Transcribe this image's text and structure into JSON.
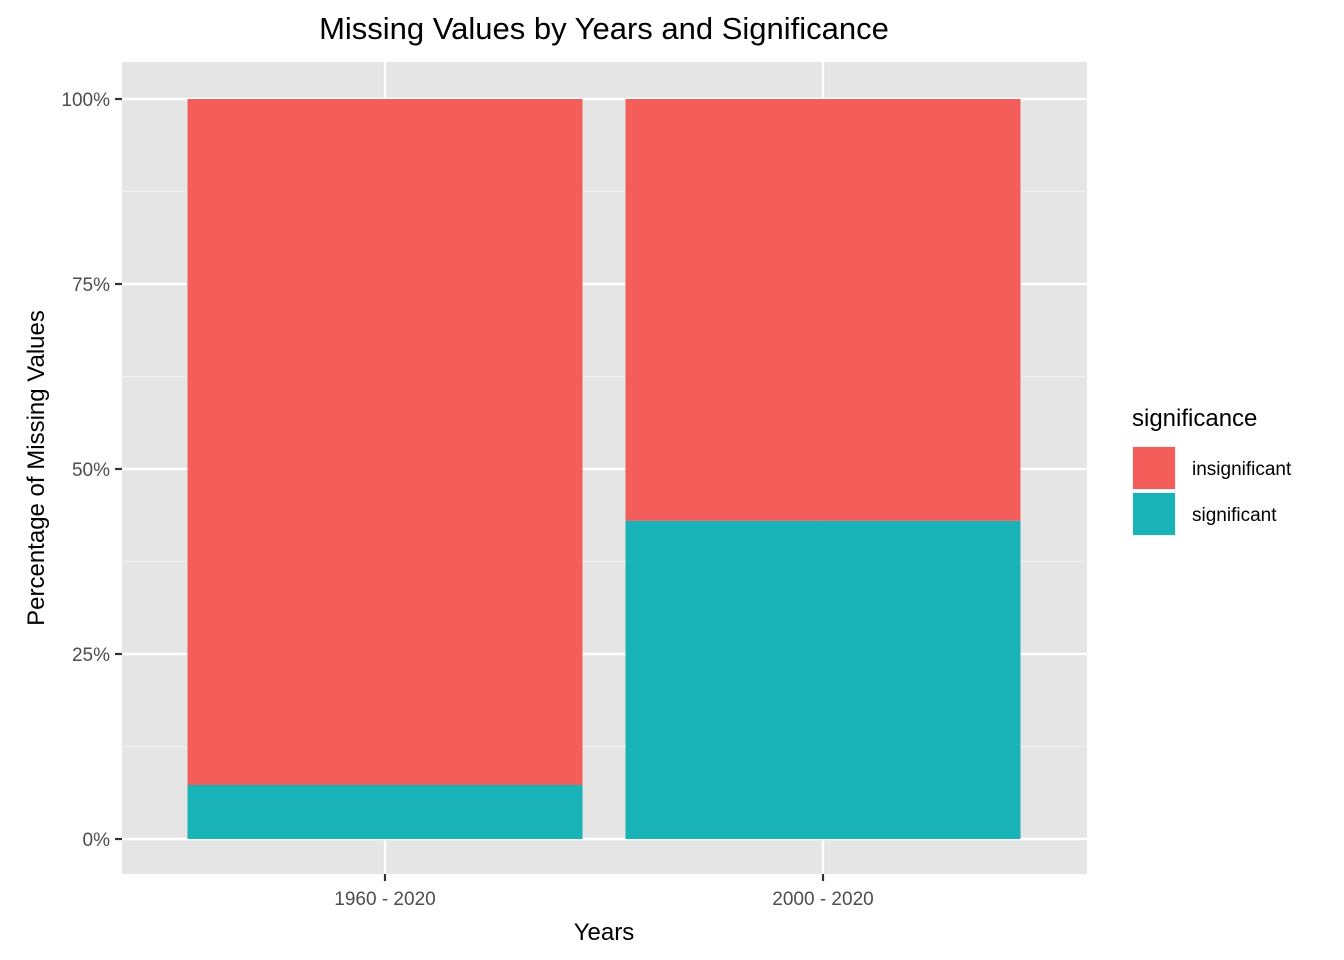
{
  "chart_data": {
    "type": "bar",
    "stacked": true,
    "title": "Missing Values by Years and Significance",
    "xlabel": "Years",
    "ylabel": "Percentage of Missing Values",
    "categories": [
      "1960 - 2020",
      "2000 - 2020"
    ],
    "series": [
      {
        "name": "insignificant",
        "color": "#F35E5A",
        "values": [
          92.7,
          57.0
        ]
      },
      {
        "name": "significant",
        "color": "#19B2B7",
        "values": [
          7.3,
          43.0
        ]
      }
    ],
    "ylim": [
      0,
      100
    ],
    "yticks": [
      0,
      25,
      50,
      75,
      100
    ],
    "ytick_labels": [
      "0%",
      "25%",
      "50%",
      "75%",
      "100%"
    ],
    "grid": true,
    "background_color": "#E5E5E5",
    "legend": {
      "title": "significance",
      "position": "right"
    }
  }
}
